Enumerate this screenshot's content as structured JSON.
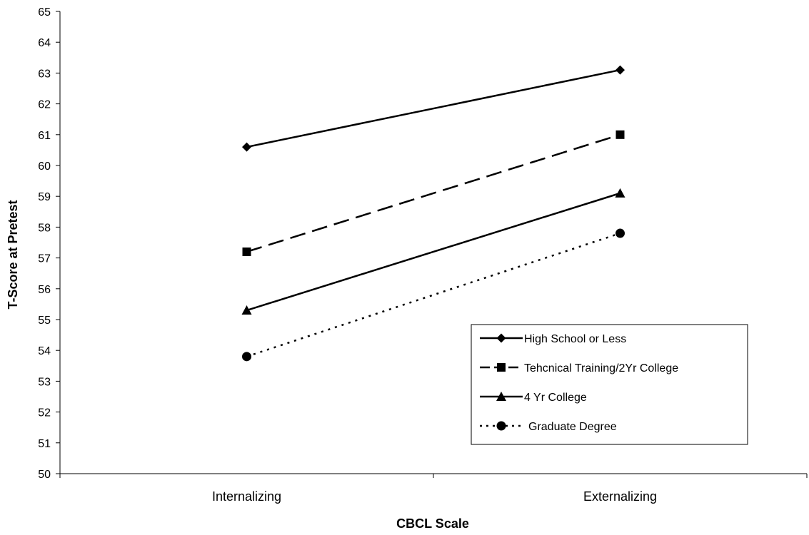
{
  "chart_data": {
    "type": "line",
    "title": "",
    "xlabel": "CBCL Scale",
    "ylabel": "T-Score at Pretest",
    "categories": [
      "Internalizing",
      "Externalizing"
    ],
    "ylim": [
      50,
      65
    ],
    "yticks": [
      50,
      51,
      52,
      53,
      54,
      55,
      56,
      57,
      58,
      59,
      60,
      61,
      62,
      63,
      64,
      65
    ],
    "grid": false,
    "legend_position": "bottom-right",
    "series": [
      {
        "name": "High School or Less",
        "values": [
          60.6,
          63.1
        ],
        "marker": "diamond",
        "line": "solid",
        "color": "#000000"
      },
      {
        "name": "Tehcnical Training/2Yr College",
        "values": [
          57.2,
          61.0
        ],
        "marker": "square",
        "line": "dashed",
        "color": "#000000"
      },
      {
        "name": "4 Yr College",
        "values": [
          55.3,
          59.1
        ],
        "marker": "triangle",
        "line": "solid",
        "color": "#000000"
      },
      {
        "name": "Graduate Degree",
        "values": [
          53.8,
          57.8
        ],
        "marker": "circle",
        "line": "dotted",
        "color": "#000000"
      }
    ]
  }
}
